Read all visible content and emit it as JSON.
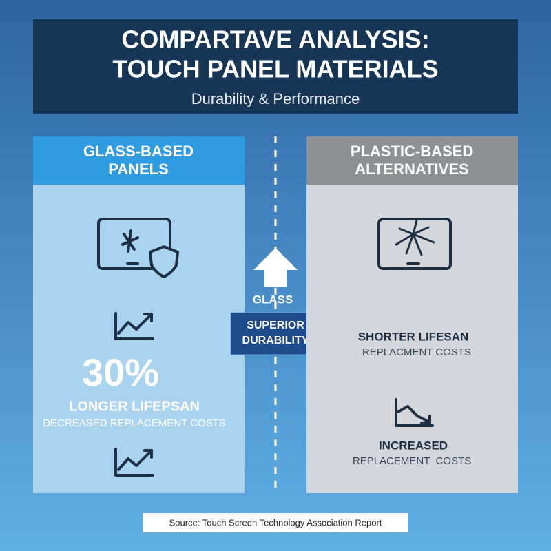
{
  "header": {
    "title_lines": [
      "COMPARTAVE ANALYSIS:",
      "TOUCH PANEL MATERIALS"
    ],
    "subtitle": "Durability & Performance"
  },
  "left_panel": {
    "title_lines": [
      "GLASS-BASED",
      "PANELS"
    ],
    "stat": "30%",
    "stat_label": "LONGER LIFEPSAN",
    "note": "DECREASED REPLACEMENT COSTS"
  },
  "center": {
    "label": "GLASS",
    "badge_lines": [
      "SUPERIOR",
      "DURABILITY"
    ]
  },
  "right_panel": {
    "title_lines": [
      "PLASTIC-BASED",
      "ALTERNATIVES"
    ],
    "point1": "SHORTER LIFESAN",
    "point1_note": "REPLACMENT COSTS",
    "point2": "INCREASED",
    "point2_note": "REPLACEMENT  COSTS"
  },
  "source": "Source: Touch Screen Technology Association Report"
}
